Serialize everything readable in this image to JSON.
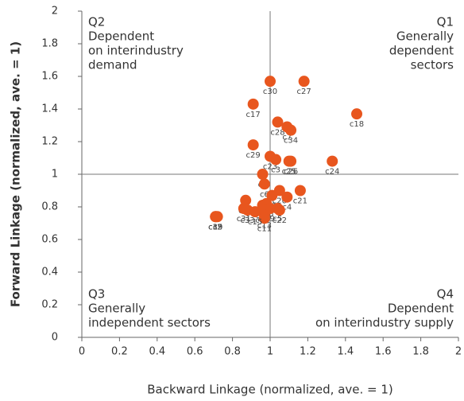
{
  "chart_data": {
    "type": "scatter",
    "x_label": "Backward Linkage (normalized, ave. = 1)",
    "y_label": "Forward Linkage (normalized, ave. = 1)",
    "xlim": [
      0,
      2
    ],
    "ylim": [
      0,
      2
    ],
    "xticks": [
      0,
      0.2,
      0.4,
      0.6,
      0.8,
      1,
      1.2,
      1.4,
      1.6,
      1.8,
      2
    ],
    "yticks": [
      0,
      0.2,
      0.4,
      0.6,
      0.8,
      1,
      1.2,
      1.4,
      1.6,
      1.8,
      2
    ],
    "reference_lines": {
      "x": 1,
      "y": 1
    },
    "color": "#e8561e",
    "labels": [
      "c30",
      "c27",
      "c17",
      "c18",
      "c28",
      "c7",
      "c34",
      "c29",
      "c23",
      "c3",
      "c25",
      "c26",
      "c24",
      "c8",
      "c6",
      "c20",
      "c1",
      "c4",
      "c21",
      "c32",
      "c14",
      "c16",
      "c12",
      "c9",
      "c5",
      "c22",
      "c31",
      "c33",
      "c13",
      "c11",
      "c15",
      "c35",
      "c2",
      "c19"
    ],
    "x": [
      1.0,
      1.18,
      0.91,
      1.46,
      1.04,
      1.09,
      1.11,
      0.91,
      1.0,
      1.03,
      1.1,
      1.11,
      1.33,
      0.96,
      0.97,
      1.05,
      1.01,
      1.09,
      1.16,
      0.87,
      0.96,
      0.98,
      0.96,
      1.0,
      1.04,
      1.05,
      0.86,
      0.88,
      0.97,
      0.97,
      0.92,
      0.71,
      0.72,
      0.71
    ],
    "values": [
      1.57,
      1.57,
      1.43,
      1.37,
      1.32,
      1.29,
      1.27,
      1.18,
      1.11,
      1.09,
      1.08,
      1.08,
      1.08,
      1.0,
      0.94,
      0.9,
      0.87,
      0.86,
      0.9,
      0.84,
      0.81,
      0.82,
      0.78,
      0.79,
      0.79,
      0.78,
      0.79,
      0.78,
      0.75,
      0.73,
      0.77,
      0.74,
      0.74,
      0.74
    ],
    "annotations": [
      {
        "lines": [
          "Q2",
          "Dependent",
          "on interindustry",
          "demand"
        ],
        "corner": "top-left"
      },
      {
        "lines": [
          "Q1",
          "Generally",
          "dependent",
          "sectors"
        ],
        "corner": "top-right"
      },
      {
        "lines": [
          "Q3",
          "Generally",
          "independent sectors"
        ],
        "corner": "bottom-left"
      },
      {
        "lines": [
          "Q4",
          "Dependent",
          "on interindustry supply"
        ],
        "corner": "bottom-right"
      }
    ]
  }
}
